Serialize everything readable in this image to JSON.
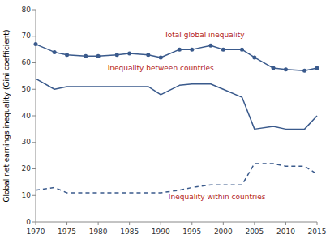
{
  "chart_data": {
    "type": "line",
    "y_label": "Global net earnings inequality (Gini coefficient)",
    "x": [
      1970,
      1973,
      1975,
      1978,
      1980,
      1983,
      1985,
      1988,
      1990,
      1993,
      1995,
      1998,
      2000,
      2003,
      2005,
      2008,
      2010,
      2013,
      2015
    ],
    "series": [
      {
        "color": "#3a5a8c",
        "marker": "circle",
        "line_style": "solid",
        "values": [
          67,
          64,
          63,
          62.5,
          62.5,
          63,
          63.5,
          63,
          62,
          65,
          65,
          66.5,
          65,
          65,
          62,
          58,
          57.5,
          57,
          58
        ]
      },
      {
        "color": "#3a5a8c",
        "marker": "none",
        "line_style": "solid",
        "values": [
          54,
          50,
          51,
          51,
          51,
          51,
          51,
          51,
          48,
          51.5,
          52,
          52,
          50,
          47,
          35,
          36,
          35,
          35,
          40
        ]
      },
      {
        "color": "#3a5a8c",
        "marker": "none",
        "line_style": "dashed",
        "values": [
          12,
          13,
          11,
          11,
          11,
          11,
          11,
          11,
          11,
          12,
          13,
          14,
          14,
          14,
          22,
          22,
          21,
          21,
          18
        ]
      }
    ],
    "annotations": [
      {
        "text": "Total global inequality",
        "x": 1997,
        "y": 69,
        "color": "#b22222"
      },
      {
        "text": "Inequality between countries",
        "x": 1990,
        "y": 56.5,
        "color": "#b22222"
      },
      {
        "text": "Inequality within countries",
        "x": 1999,
        "y": 8.0,
        "color": "#b22222"
      }
    ],
    "xlim": [
      1970,
      2015
    ],
    "ylim": [
      0,
      80
    ],
    "xticks": [
      1970,
      1975,
      1980,
      1985,
      1990,
      1995,
      2000,
      2005,
      2010,
      2015
    ],
    "yticks": [
      0,
      10,
      20,
      30,
      40,
      50,
      60,
      70,
      80
    ],
    "grid": false
  }
}
